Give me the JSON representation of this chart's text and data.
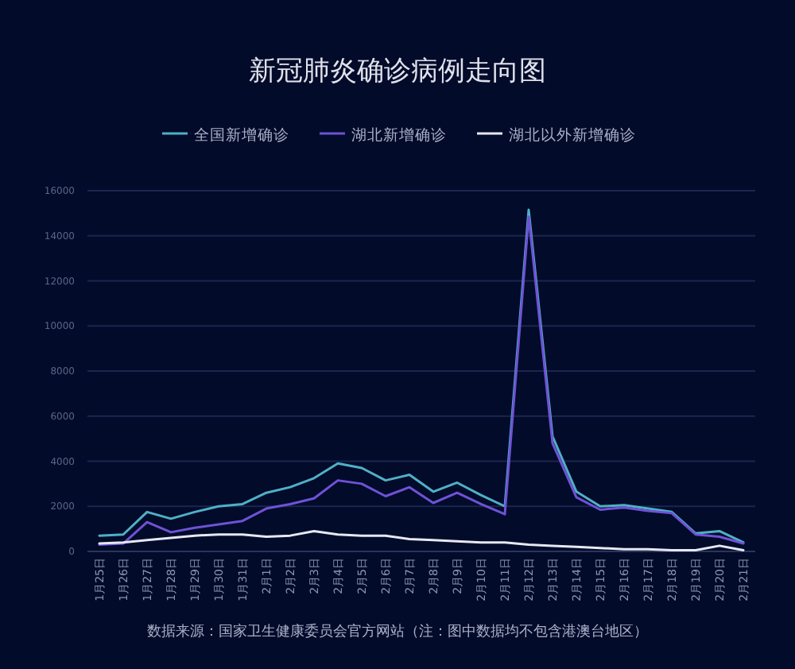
{
  "chart_data": {
    "type": "line",
    "title": "新冠肺炎确诊病例走向图",
    "categories": [
      "1月25日",
      "1月26日",
      "1月27日",
      "1月28日",
      "1月29日",
      "1月30日",
      "1月31日",
      "2月1日",
      "2月2日",
      "2月3日",
      "2月4日",
      "2月5日",
      "2月6日",
      "2月7日",
      "2月8日",
      "2月9日",
      "2月10日",
      "2月11日",
      "2月12日",
      "2月13日",
      "2月14日",
      "2月15日",
      "2月16日",
      "2月17日",
      "2月18日",
      "2月19日",
      "2月20日",
      "2月21日"
    ],
    "series": [
      {
        "name": "全国新增确诊",
        "color": "#4fb0c6",
        "values": [
          700,
          750,
          1750,
          1450,
          1750,
          2000,
          2100,
          2600,
          2850,
          3250,
          3900,
          3700,
          3150,
          3400,
          2650,
          3050,
          2500,
          2000,
          15150,
          5100,
          2650,
          2000,
          2050,
          1900,
          1750,
          800,
          900,
          400
        ]
      },
      {
        "name": "湖北新增确诊",
        "color": "#6e52d6",
        "values": [
          300,
          350,
          1300,
          850,
          1050,
          1200,
          1350,
          1900,
          2100,
          2350,
          3150,
          3000,
          2450,
          2850,
          2150,
          2600,
          2100,
          1650,
          14850,
          4800,
          2400,
          1850,
          1950,
          1800,
          1700,
          750,
          650,
          350
        ]
      },
      {
        "name": "湖北以外新增确诊",
        "color": "#e6e8f2",
        "values": [
          350,
          400,
          500,
          600,
          700,
          750,
          750,
          650,
          700,
          900,
          750,
          700,
          700,
          550,
          500,
          450,
          400,
          400,
          300,
          250,
          200,
          150,
          100,
          100,
          50,
          50,
          250,
          50
        ]
      }
    ],
    "ylim": [
      0,
      16000
    ],
    "yticks": [
      0,
      2000,
      4000,
      6000,
      8000,
      10000,
      12000,
      14000,
      16000
    ],
    "grid": "y",
    "legend": "top",
    "annotations": [
      "数据来源：国家卫生健康委员会官方网站（注：图中数据均不包含港澳台地区）"
    ]
  }
}
